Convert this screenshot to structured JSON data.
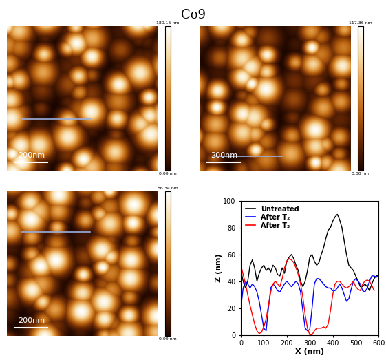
{
  "title": "Co9",
  "images": [
    {
      "scale_bar": "200nm",
      "colorbar": {
        "range": [
          0,
          180.16
        ],
        "top_label": "180.16 nm",
        "bottom_label": "0.00 nm"
      }
    },
    {
      "scale_bar": "200nm",
      "colorbar": {
        "range": [
          0,
          117.36
        ],
        "top_label": "117.36 nm",
        "bottom_label": "0.00 nm"
      }
    },
    {
      "scale_bar": "200nm",
      "colorbar": {
        "range": [
          0,
          86.34
        ],
        "top_label": "86.34 nm",
        "bottom_label": "0.00 nm"
      }
    }
  ],
  "chart_data": {
    "type": "line",
    "xlabel": "X (nm)",
    "ylabel": "Z (nm)",
    "x": [
      0,
      10,
      20,
      30,
      40,
      50,
      60,
      70,
      80,
      90,
      100,
      110,
      120,
      130,
      140,
      150,
      160,
      170,
      180,
      190,
      200,
      210,
      220,
      230,
      240,
      250,
      260,
      270,
      280,
      290,
      300,
      310,
      320,
      330,
      340,
      350,
      360,
      370,
      380,
      390,
      400,
      410,
      420,
      430,
      440,
      450,
      460,
      470,
      480,
      490,
      500,
      510,
      520,
      530,
      540,
      550,
      560,
      570,
      580,
      590,
      600
    ],
    "series": [
      {
        "name": "Untreated",
        "color": "#000000",
        "values": [
          48,
          40,
          35,
          40,
          52,
          56,
          50,
          40,
          46,
          50,
          52,
          48,
          50,
          47,
          52,
          50,
          45,
          44,
          50,
          46,
          55,
          58,
          60,
          57,
          52,
          48,
          40,
          36,
          40,
          48,
          58,
          60,
          55,
          52,
          54,
          60,
          65,
          72,
          78,
          80,
          85,
          88,
          90,
          86,
          80,
          70,
          60,
          52,
          50,
          48,
          44,
          40,
          36,
          36,
          38,
          36,
          33,
          38,
          42,
          44,
          45
        ]
      },
      {
        "name": "After T₂",
        "color": "#0000ff",
        "values": [
          20,
          35,
          40,
          38,
          35,
          38,
          36,
          32,
          25,
          15,
          5,
          3,
          20,
          35,
          38,
          36,
          33,
          32,
          35,
          38,
          40,
          38,
          36,
          38,
          40,
          38,
          32,
          18,
          5,
          3,
          4,
          20,
          38,
          42,
          42,
          40,
          38,
          36,
          35,
          35,
          33,
          33,
          35,
          38,
          35,
          30,
          25,
          27,
          34,
          40,
          42,
          40,
          38,
          33,
          32,
          35,
          40,
          44,
          44,
          43,
          45
        ]
      },
      {
        "name": "After T₃",
        "color": "#ff0000",
        "values": [
          52,
          45,
          38,
          30,
          22,
          15,
          8,
          3,
          1,
          2,
          6,
          12,
          22,
          32,
          38,
          40,
          38,
          36,
          42,
          50,
          55,
          57,
          56,
          54,
          50,
          45,
          38,
          28,
          15,
          5,
          0,
          0,
          3,
          5,
          5,
          5,
          6,
          5,
          8,
          18,
          30,
          38,
          40,
          40,
          38,
          36,
          35,
          36,
          38,
          40,
          36,
          34,
          33,
          38,
          40,
          41,
          40,
          37,
          33,
          null,
          null
        ]
      }
    ],
    "xlim": [
      0,
      600
    ],
    "ylim": [
      0,
      100
    ],
    "xticks": [
      0,
      100,
      200,
      300,
      400,
      500,
      600
    ],
    "yticks": [
      0,
      20,
      40,
      60,
      80,
      100
    ],
    "legend": "upper left",
    "grid": false
  }
}
